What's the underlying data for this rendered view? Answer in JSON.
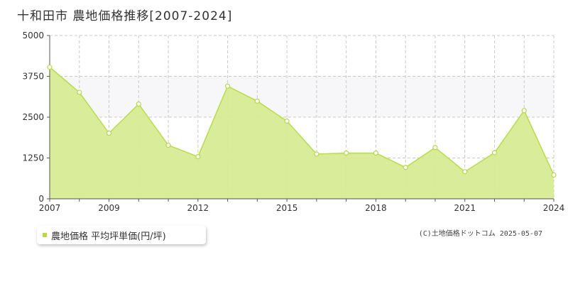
{
  "title": "十和田市 農地価格推移[2007-2024]",
  "legend": {
    "label": "農地価格 平均坪単価(円/坪)"
  },
  "copyright": "(C)土地価格ドットコム 2025-05-07",
  "colors": {
    "fill": "#d7eb94",
    "line": "#b8dc4a",
    "marker": "#b5d947",
    "band": "#f7f7f9",
    "grid": "#c8c8c8"
  },
  "chart_data": {
    "type": "area",
    "title": "十和田市 農地価格推移[2007-2024]",
    "xlabel": "",
    "ylabel": "",
    "x": [
      2007,
      2008,
      2009,
      2010,
      2011,
      2012,
      2013,
      2014,
      2015,
      2016,
      2017,
      2018,
      2019,
      2020,
      2021,
      2022,
      2023,
      2024
    ],
    "series": [
      {
        "name": "農地価格 平均坪単価(円/坪)",
        "values": [
          4030,
          3260,
          2010,
          2900,
          1640,
          1290,
          3450,
          2990,
          2380,
          1370,
          1400,
          1400,
          960,
          1570,
          830,
          1410,
          2700,
          730
        ]
      }
    ],
    "ylim": [
      0,
      5000
    ],
    "yticks": [
      "0",
      "1250",
      "2500",
      "3750",
      "5000"
    ],
    "ytick_values": [
      0,
      1250,
      2500,
      3750,
      5000
    ],
    "xtick_labels": [
      "2007",
      "2009",
      "2012",
      "2015",
      "2018",
      "2021",
      "2024"
    ],
    "xtick_values": [
      2007,
      2009,
      2012,
      2015,
      2018,
      2021,
      2024
    ],
    "grid": true,
    "legend_position": "bottom-left"
  }
}
